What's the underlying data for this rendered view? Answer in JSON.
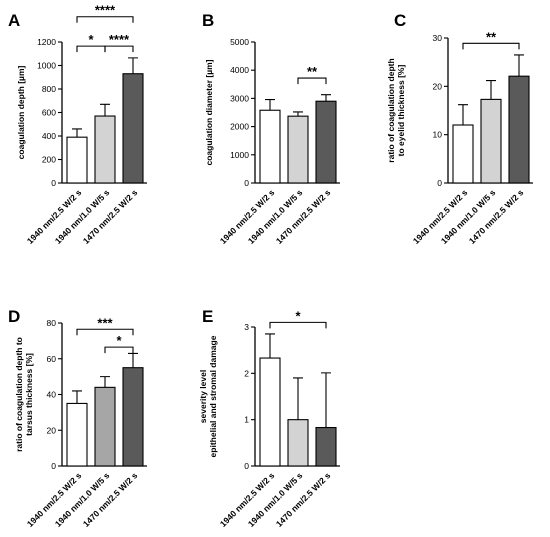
{
  "colors": {
    "bar1": "#ffffff",
    "bar2": "#d3d3d3",
    "bar3": "#5a5a5a",
    "bar2_D": "#a6a6a6"
  },
  "chart_data": [
    {
      "id": "A",
      "type": "bar",
      "panel_letter": "A",
      "categories": [
        "1940 nm/2.5 W/2 s",
        "1940 nm/1.0 W/5 s",
        "1470 nm/2.5 W/2 s"
      ],
      "values": [
        390,
        570,
        930
      ],
      "errors": [
        70,
        100,
        135
      ],
      "ylabel": "coagulation depth [µm]",
      "ylim": [
        0,
        1200
      ],
      "yticks": [
        0,
        200,
        400,
        600,
        800,
        1000,
        1200
      ],
      "ytick_labels": [
        "0",
        "200",
        "400",
        "600",
        "800",
        "1000",
        "1200"
      ],
      "significance": [
        {
          "from": 0,
          "to": 2,
          "label": "****",
          "y": 1415
        },
        {
          "from": 0,
          "to": 1,
          "label": "*",
          "y": 1165
        },
        {
          "from": 1,
          "to": 2,
          "label": "****",
          "y": 1165
        }
      ]
    },
    {
      "id": "B",
      "type": "bar",
      "panel_letter": "B",
      "categories": [
        "1940 nm/2.5 W/2 s",
        "1940 nm/1.0 W/5 s",
        "1470 nm/2.5 W/2 s"
      ],
      "values": [
        2580,
        2370,
        2900
      ],
      "errors": [
        380,
        150,
        230
      ],
      "ylabel": "coagulation diameter [µm]",
      "ylim": [
        0,
        5000
      ],
      "yticks": [
        0,
        1000,
        2000,
        3000,
        4000,
        5000
      ],
      "ytick_labels": [
        "0",
        "1000",
        "2000",
        "3000",
        "4000",
        "5000"
      ],
      "significance": [
        {
          "from": 1,
          "to": 2,
          "label": "**",
          "y": 3720
        }
      ]
    },
    {
      "id": "C",
      "type": "bar",
      "panel_letter": "C",
      "categories": [
        "1940 nm/2.5 W/2 s",
        "1940 nm/1.0 W/5 s",
        "1470 nm/2.5 W/2 s"
      ],
      "values": [
        12.0,
        17.3,
        22.1
      ],
      "errors": [
        4.2,
        3.9,
        4.4
      ],
      "ylabel": "ratio of coagulation depth\nto eyelid thickness [%]",
      "ylim": [
        0,
        30
      ],
      "yticks": [
        0,
        10,
        20,
        30
      ],
      "ytick_labels": [
        "0",
        "10",
        "20",
        "30"
      ],
      "significance": [
        {
          "from": 0,
          "to": 2,
          "label": "**",
          "y": 28.9
        }
      ]
    },
    {
      "id": "D",
      "type": "bar",
      "panel_letter": "D",
      "categories": [
        "1940 nm/2.5 W/2 s",
        "1940 nm/1.0 W/5 s",
        "1470 nm/2.5 W/2 s"
      ],
      "values": [
        35,
        44,
        55
      ],
      "errors": [
        7,
        6,
        8
      ],
      "ylabel": "ratio of coagulation depth to\ntarsus thickness [%]",
      "ylim": [
        0,
        80
      ],
      "yticks": [
        0,
        20,
        40,
        60,
        80
      ],
      "ytick_labels": [
        "0",
        "20",
        "40",
        "60",
        "80"
      ],
      "significance": [
        {
          "from": 0,
          "to": 2,
          "label": "***",
          "y": 76.5
        },
        {
          "from": 1,
          "to": 2,
          "label": "*",
          "y": 66.5
        }
      ]
    },
    {
      "id": "E",
      "type": "bar",
      "panel_letter": "E",
      "categories": [
        "1940 nm/2.5 W/2 s",
        "1940 nm/1.0 W/5 s",
        "1470 nm/2.5 W/2 s"
      ],
      "values": [
        2.33,
        1.0,
        0.83
      ],
      "errors": [
        0.52,
        0.9,
        1.18
      ],
      "ylabel": "severity level\nepithelial and stromal damage",
      "ylim": [
        0,
        3
      ],
      "yticks": [
        0,
        1,
        2,
        3
      ],
      "ytick_labels": [
        "0",
        "1",
        "2",
        "3"
      ],
      "significance": [
        {
          "from": 0,
          "to": 2,
          "label": "*",
          "y": 3.1
        }
      ]
    }
  ]
}
